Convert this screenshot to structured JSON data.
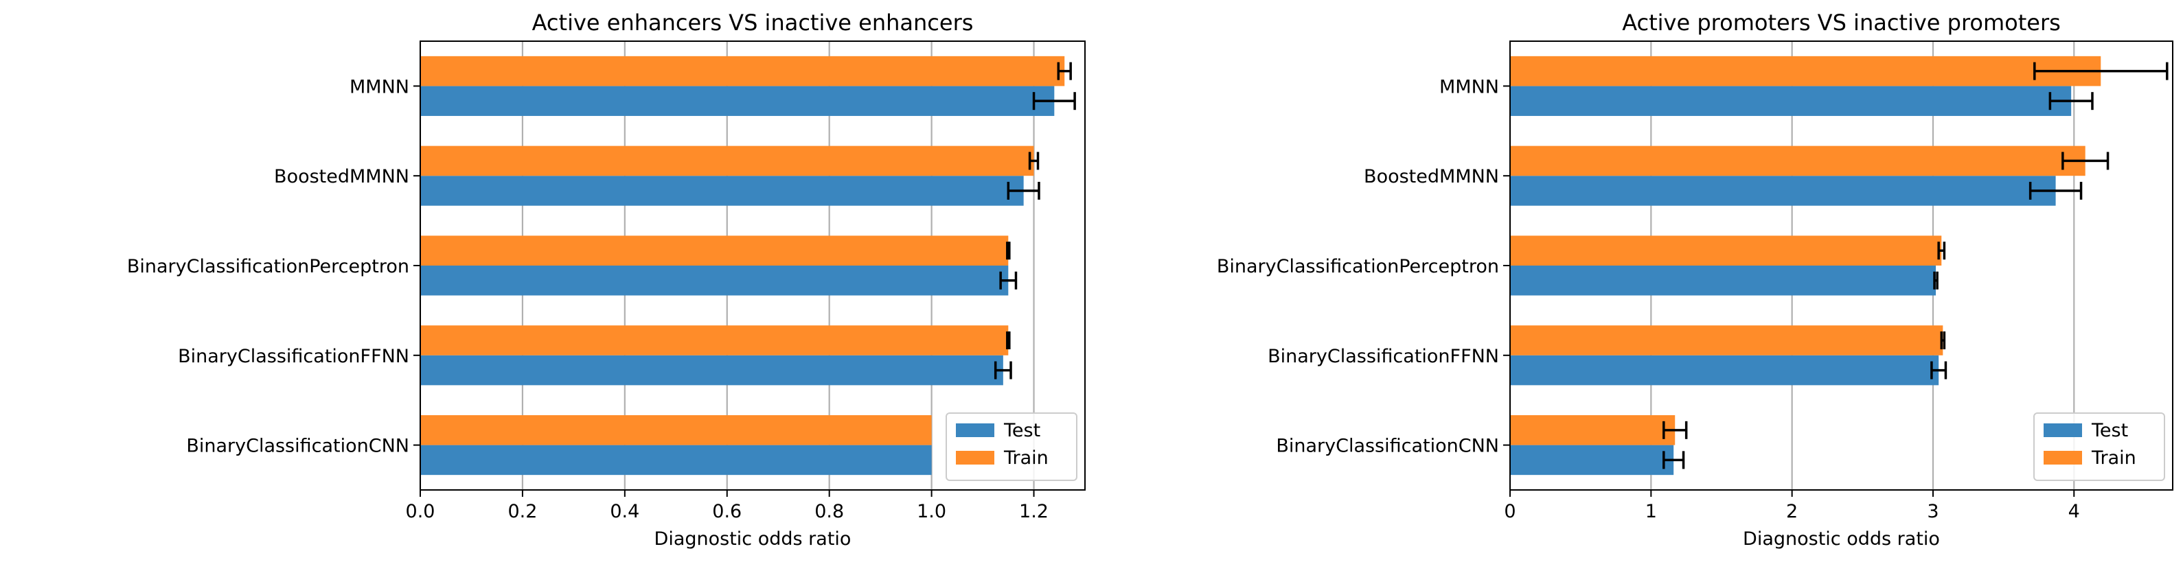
{
  "colors": {
    "test": "#3a86bf",
    "train": "#ff8c29",
    "grid": "#b0b0b0",
    "axis": "#000000",
    "error": "#000000"
  },
  "chart_data": [
    {
      "type": "bar",
      "orientation": "horizontal",
      "title": "Active enhancers VS inactive enhancers",
      "xlabel": "Diagnostic odds ratio",
      "ylabel": "",
      "xlim": [
        0,
        1.3
      ],
      "xticks": [
        0.0,
        0.2,
        0.4,
        0.6,
        0.8,
        1.0,
        1.2
      ],
      "xtick_labels": [
        "0.0",
        "0.2",
        "0.4",
        "0.6",
        "0.8",
        "1.0",
        "1.2"
      ],
      "grid": "x",
      "legend": "lower-right",
      "categories": [
        "MMNN",
        "BoostedMMNN",
        "BinaryClassificationPerceptron",
        "BinaryClassificationFFNN",
        "BinaryClassificationCNN"
      ],
      "series": [
        {
          "name": "Test",
          "values": [
            1.24,
            1.18,
            1.15,
            1.14,
            1.0
          ],
          "errors": [
            0.04,
            0.03,
            0.015,
            0.015,
            0
          ]
        },
        {
          "name": "Train",
          "values": [
            1.26,
            1.2,
            1.15,
            1.15,
            1.0
          ],
          "errors": [
            0.012,
            0.008,
            0.002,
            0.002,
            0
          ]
        }
      ]
    },
    {
      "type": "bar",
      "orientation": "horizontal",
      "title": "Active promoters VS inactive promoters",
      "xlabel": "Diagnostic odds ratio",
      "ylabel": "",
      "xlim": [
        0,
        4.7
      ],
      "xticks": [
        0,
        1,
        2,
        3,
        4
      ],
      "xtick_labels": [
        "0",
        "1",
        "2",
        "3",
        "4"
      ],
      "grid": "x",
      "legend": "lower-right",
      "categories": [
        "MMNN",
        "BoostedMMNN",
        "BinaryClassificationPerceptron",
        "BinaryClassificationFFNN",
        "BinaryClassificationCNN"
      ],
      "series": [
        {
          "name": "Test",
          "values": [
            3.98,
            3.87,
            3.02,
            3.04,
            1.16
          ],
          "errors": [
            0.15,
            0.18,
            0.01,
            0.05,
            0.07
          ]
        },
        {
          "name": "Train",
          "values": [
            4.19,
            4.08,
            3.06,
            3.07,
            1.17
          ],
          "errors": [
            0.47,
            0.16,
            0.02,
            0.01,
            0.08
          ]
        }
      ]
    }
  ]
}
